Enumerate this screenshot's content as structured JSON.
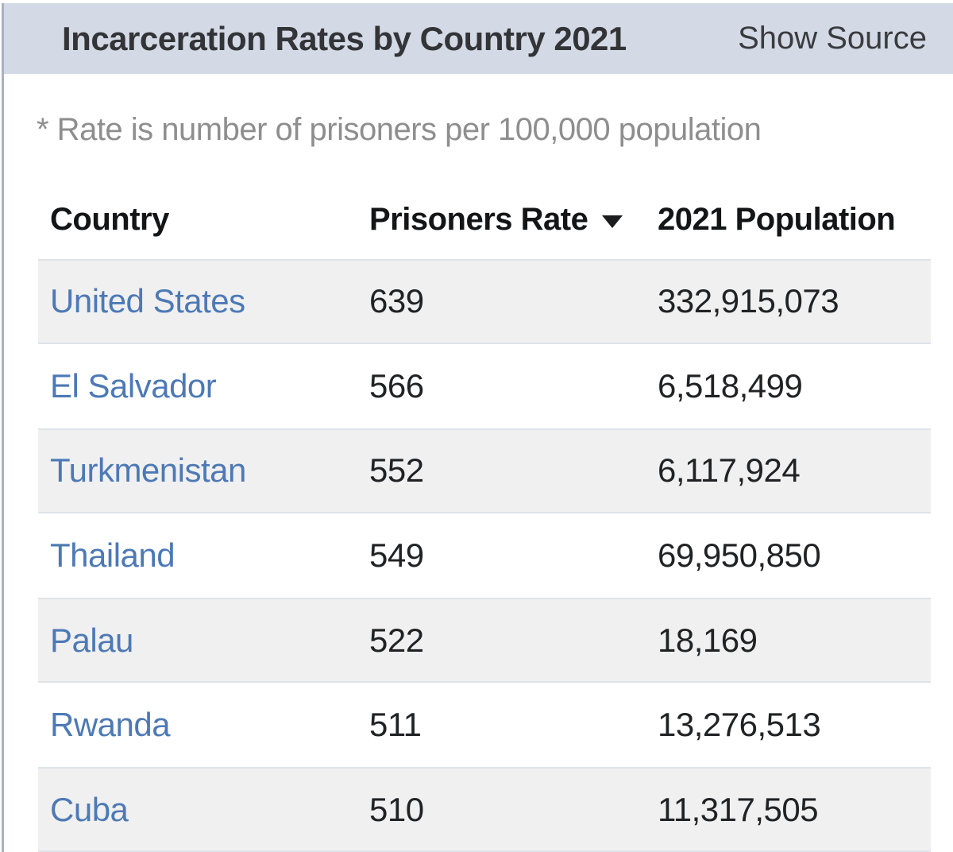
{
  "header": {
    "title": "Incarceration Rates by Country 2021",
    "source_toggle_label": "Show Source"
  },
  "note": "* Rate is number of prisoners per 100,000 population",
  "table": {
    "columns": {
      "country": "Country",
      "rate": "Prisoners Rate",
      "population": "2021 Population"
    },
    "sort": {
      "column": "Prisoners Rate",
      "direction": "descending",
      "icon": "sort-descending-triangle"
    },
    "rows": [
      {
        "country": "United States",
        "rate": "639",
        "population": "332,915,073"
      },
      {
        "country": "El Salvador",
        "rate": "566",
        "population": "6,518,499"
      },
      {
        "country": "Turkmenistan",
        "rate": "552",
        "population": "6,117,924"
      },
      {
        "country": "Thailand",
        "rate": "549",
        "population": "69,950,850"
      },
      {
        "country": "Palau",
        "rate": "522",
        "population": "18,169"
      },
      {
        "country": "Rwanda",
        "rate": "511",
        "population": "13,276,513"
      },
      {
        "country": "Cuba",
        "rate": "510",
        "population": "11,317,505"
      }
    ]
  },
  "colors": {
    "band_background": "#d3d9e5",
    "stripe_background": "#f0f0f1",
    "stripe_border": "#dfe3e9",
    "link_blue": "#4d79b5",
    "note_gray": "#8e8e8e",
    "text_dark": "#212224",
    "left_line": "#a9b0c1"
  }
}
